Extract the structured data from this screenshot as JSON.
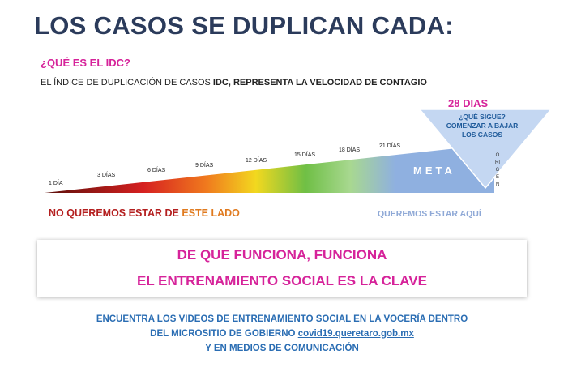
{
  "title": "LOS CASOS SE DUPLICAN CADA:",
  "question": "¿QUÉ ES EL IDC?",
  "definition": {
    "prefix": "EL ÍNDICE DE DUPLICACIÓN DE CASOS ",
    "bold": "IDC, REPRESENTA LA VELOCIDAD DE CONTAGIO"
  },
  "scale": {
    "ticks": [
      "1 DÍA",
      "3 DÍAS",
      "6 DÍAS",
      "9 DÍAS",
      "12 DÍAS",
      "15 DÍAS",
      "18 DÍAS",
      "21 DÍAS"
    ],
    "meta_label": "META",
    "target_days": "28 DIAS",
    "next_step": "¿QUÉ SIGUE? COMENZAR A BAJAR LOS CASOS",
    "origin_label": "ORIGEN",
    "colors": {
      "dark_red": "#5a0f0a",
      "red": "#d62020",
      "orange": "#f07a1e",
      "yellow": "#f2d81f",
      "green": "#6fbf45",
      "light_green": "#a8d890",
      "blue": "#8fb0e0",
      "triangle": "#c4d7f2"
    }
  },
  "bottom_left": {
    "part1": "NO QUEREMOS ",
    "part2": "ESTAR DE ",
    "part3": "ESTE LADO"
  },
  "bottom_right": "QUEREMOS ESTAR AQUÍ",
  "box": {
    "line1": "DE QUE FUNCIONA, FUNCIONA",
    "line2": "EL ENTRENAMIENTO SOCIAL ES LA CLAVE"
  },
  "footer": {
    "line1": "ENCUENTRA LOS VIDEOS DE ENTRENAMIENTO SOCIAL EN LA VOCERÍA  DENTRO",
    "line2_prefix": "DEL MICROSITIO DE GOBIERNO ",
    "line2_link": "covid19.queretaro.gob.mx",
    "line3": "Y EN MEDIOS DE COMUNICACIÓN"
  }
}
